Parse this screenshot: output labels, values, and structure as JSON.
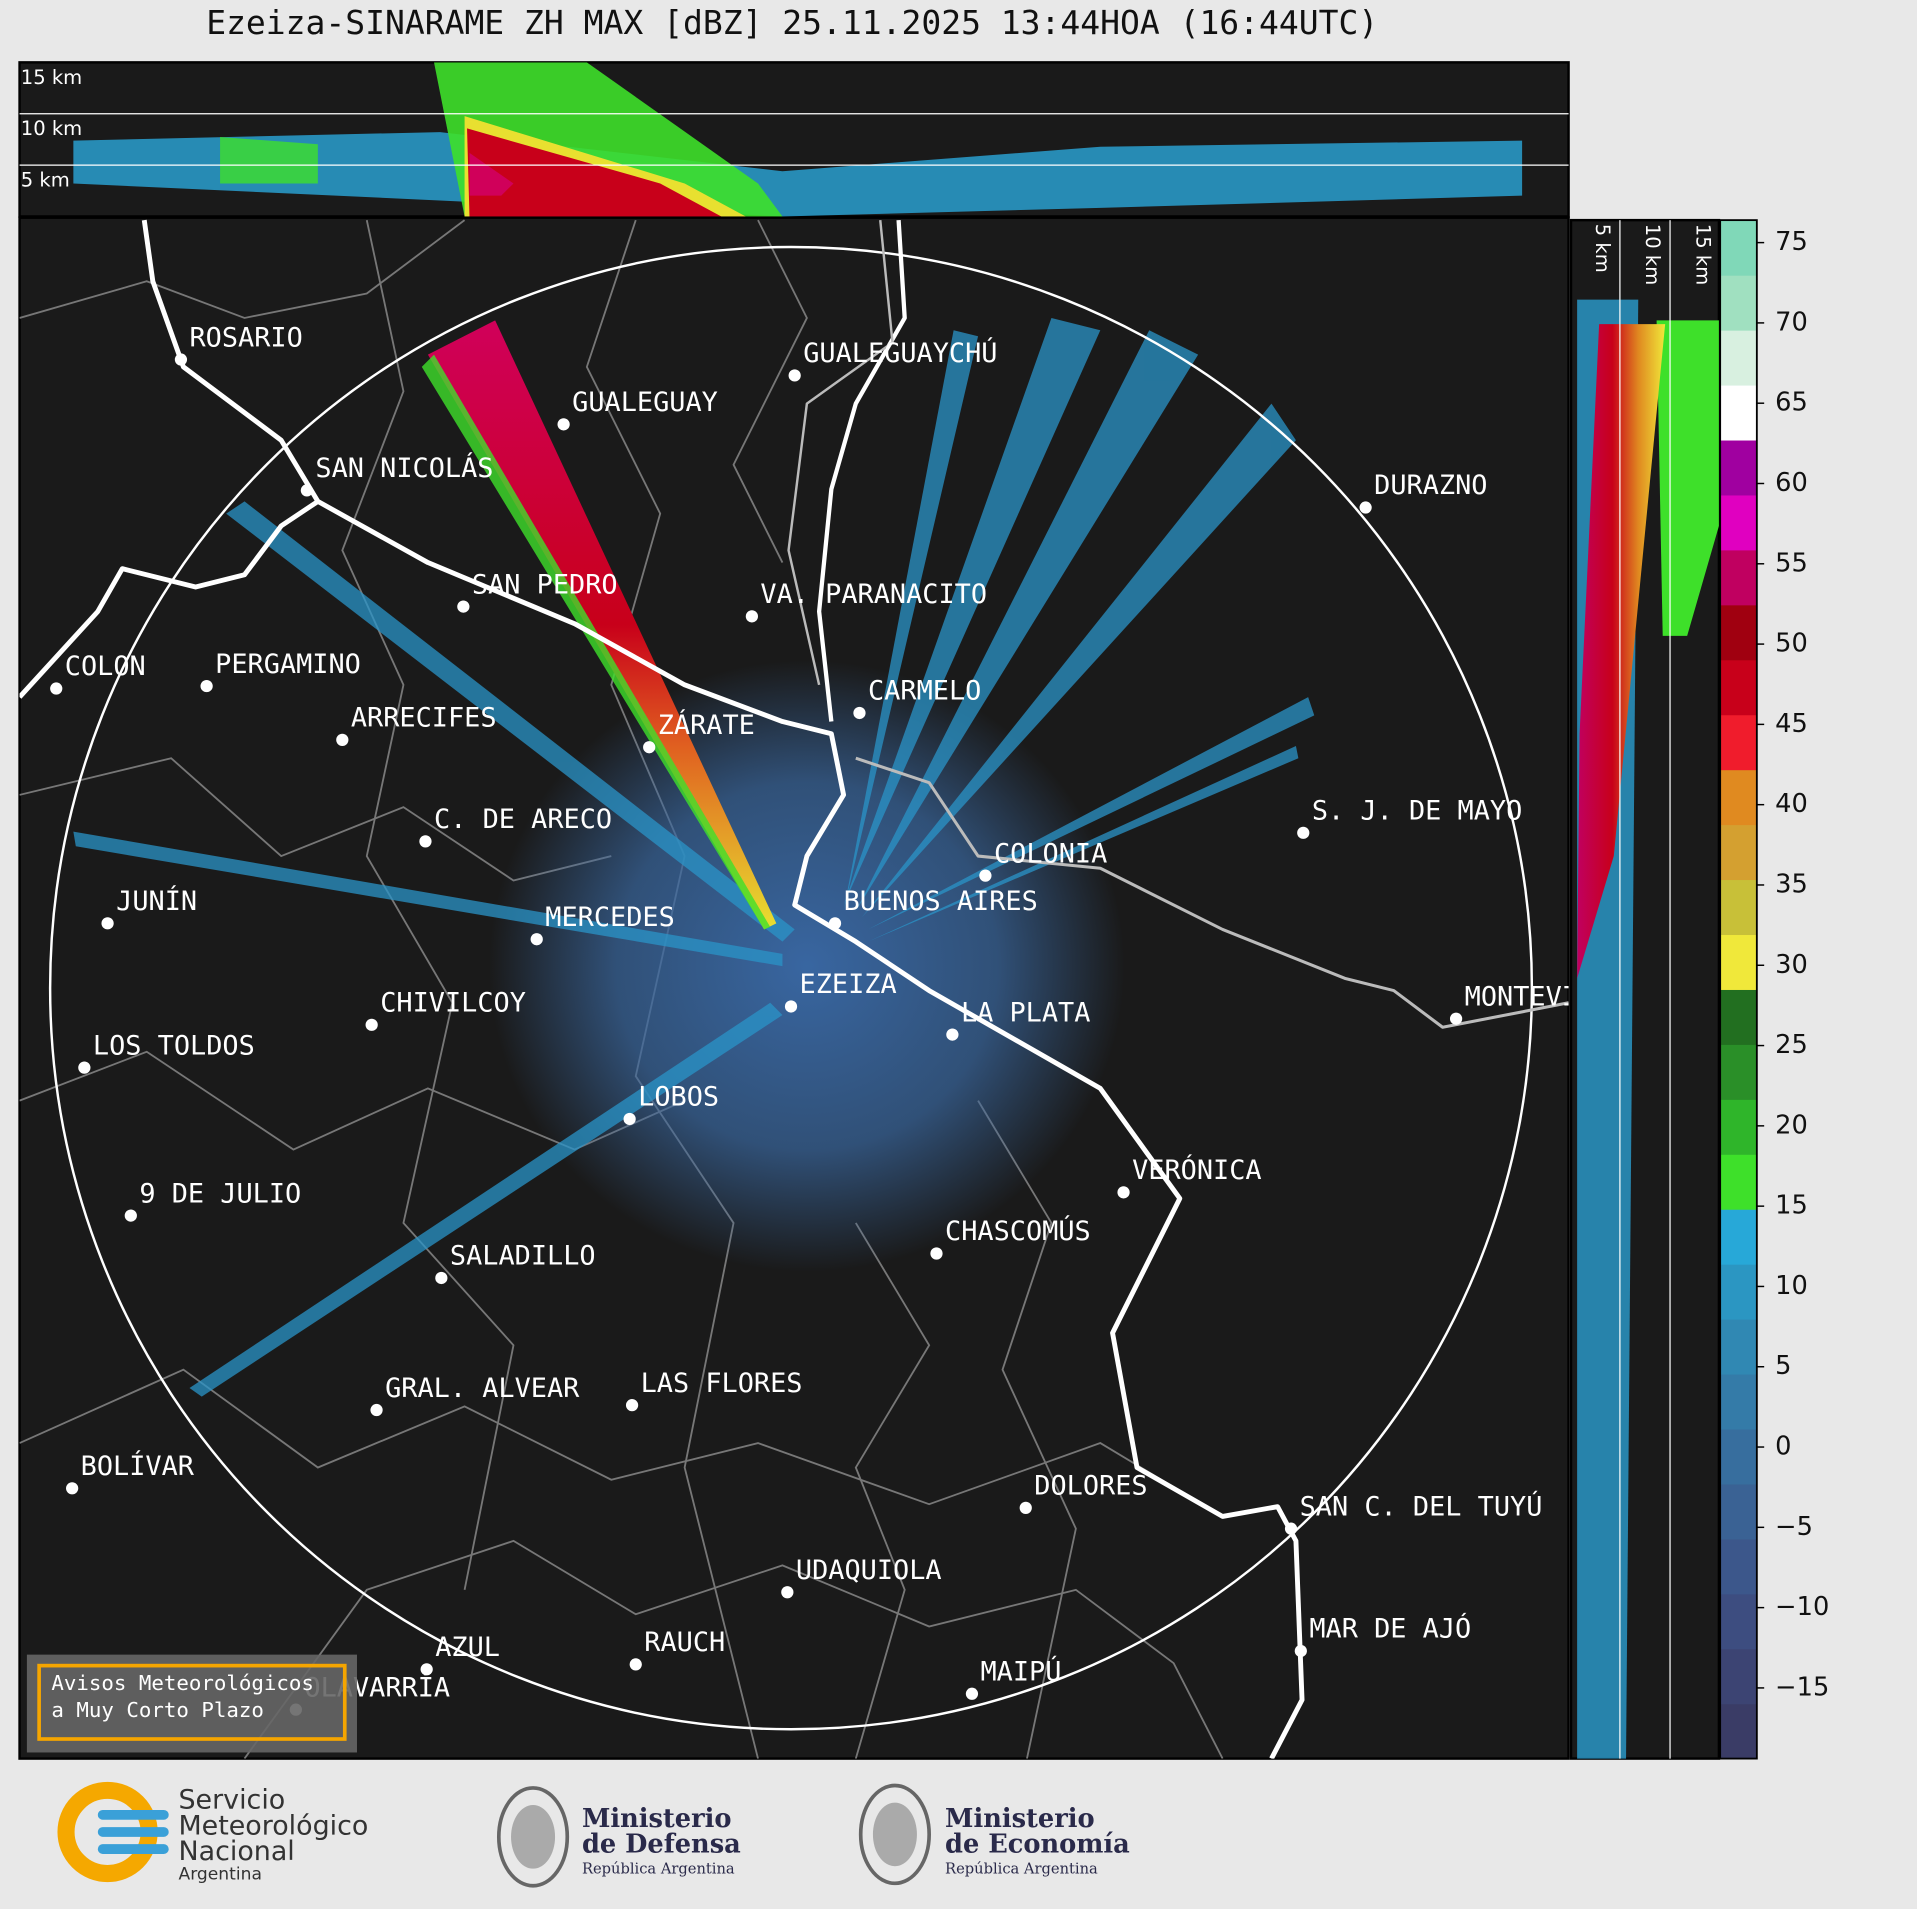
{
  "title": "Ezeiza-SINARAME ZH MAX [dBZ] 25.11.2025 13:44HOA (16:44UTC)",
  "height_labels": [
    "15 km",
    "10 km",
    "5 km"
  ],
  "side_height_labels": [
    "5 km",
    "10 km",
    "15 km"
  ],
  "cities": [
    "ROSARIO",
    "GUALEGUAYCHÚ",
    "GUALEGUAY",
    "SAN NICOLÁS",
    "DURAZNO",
    "SAN PEDRO",
    "VA. PARANACITO",
    "COLON",
    "PERGAMINO",
    "CARMELO",
    "ARRECIFES",
    "ZÁRATE",
    "S. J. DE MAYO",
    "C. DE ARECO",
    "COLONIA",
    "BUENOS AIRES",
    "JUNÍN",
    "MERCEDES",
    "EZEIZA",
    "MONTEVIDEO",
    "CHIVILCOY",
    "LA PLATA",
    "LOS TOLDOS",
    "LOBOS",
    "VERÓNICA",
    "9 DE JULIO",
    "CHASCOMÚS",
    "SALADILLO",
    "LAS FLORES",
    "GRAL. ALVEAR",
    "BOLÍVAR",
    "DOLORES",
    "SAN C. DEL TUYÚ",
    "UDAQUIOLA",
    "MAR DE AJÓ",
    "RAUCH",
    "AZUL",
    "OLAVARRÍA",
    "MAIPÚ"
  ],
  "colorbar": {
    "lim": [
      -19.4,
      76.4
    ],
    "ticks": [
      {
        "value": -15,
        "label": "−15"
      },
      {
        "value": -10,
        "label": "−10"
      },
      {
        "value": -5,
        "label": "−5"
      },
      0,
      5,
      10,
      15,
      20,
      25,
      30,
      35,
      40,
      45,
      50,
      55,
      60,
      65,
      70,
      75
    ],
    "colors": [
      "#3a3c66",
      "#3c4473",
      "#3d4d80",
      "#3c578b",
      "#3a6294",
      "#376e9e",
      "#347ba8",
      "#3088b3",
      "#2b96c2",
      "#27a8d8",
      "#3ee02a",
      "#2fb52a",
      "#2a8f28",
      "#226f20",
      "#f0e83a",
      "#c8c038",
      "#d4a030",
      "#e08a20",
      "#f01c2c",
      "#c8001a",
      "#a00010",
      "#c00060",
      "#e000c0",
      "#a000a0",
      "#ffffff",
      "#d8f0e0",
      "#a0e0c0",
      "#80d8b8"
    ]
  },
  "warning": [
    "Avisos Meteorológicos",
    "a Muy Corto Plazo"
  ],
  "logos": {
    "smn": [
      "Servicio",
      "Meteorológico",
      "Nacional",
      "Argentina"
    ],
    "defensa": [
      "Ministerio",
      "de Defensa",
      "República Argentina"
    ],
    "economia": [
      "Ministerio",
      "de Economía",
      "República Argentina"
    ]
  }
}
